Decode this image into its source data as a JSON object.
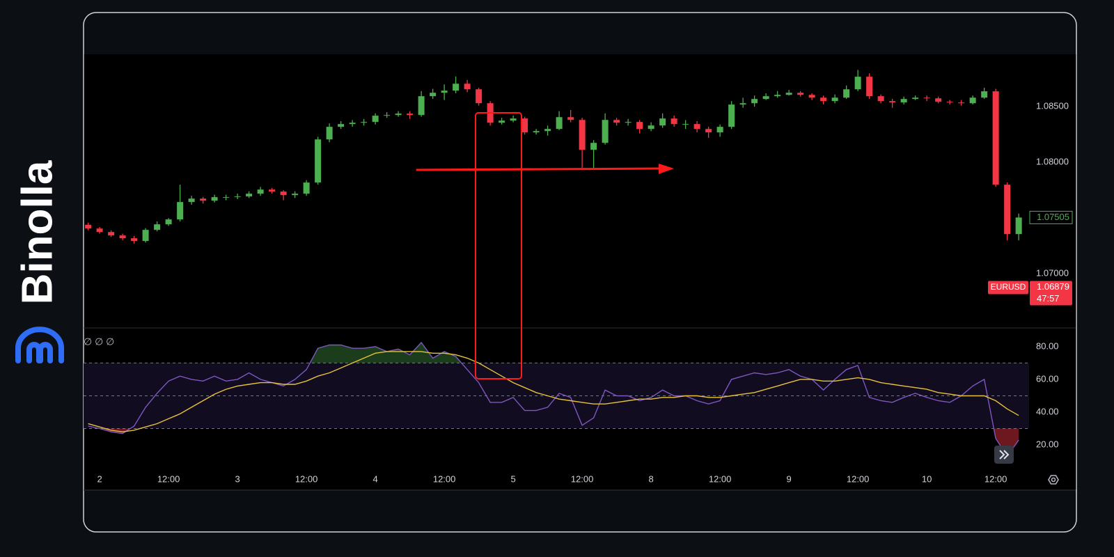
{
  "brand": "Binolla",
  "chart_data": {
    "type": "candlestick",
    "symbol": "EURUSD",
    "current_price": 1.06879,
    "countdown": "47:57",
    "up_color": "#4caf50",
    "down_color": "#f23645",
    "xlim": [
      -2.8,
      161.8
    ],
    "xticks": [
      {
        "value": 0,
        "label": "2"
      },
      {
        "value": 12,
        "label": "12:00"
      },
      {
        "value": 24,
        "label": "3"
      },
      {
        "value": 36,
        "label": "12:00"
      },
      {
        "value": 48,
        "label": "4"
      },
      {
        "value": 60,
        "label": "12:00"
      },
      {
        "value": 72,
        "label": "5"
      },
      {
        "value": 84,
        "label": "12:00"
      },
      {
        "value": 96,
        "label": "8"
      },
      {
        "value": 108,
        "label": "12:00"
      },
      {
        "value": 120,
        "label": "9"
      },
      {
        "value": 132,
        "label": "12:00"
      },
      {
        "value": 144,
        "label": "10"
      },
      {
        "value": 156,
        "label": "12:00"
      }
    ],
    "ylim": [
      1.0652,
      1.0897
    ],
    "yticks": [
      {
        "value": 1.085,
        "label": "1.08500"
      },
      {
        "value": 1.08,
        "label": "1.08000"
      },
      {
        "value": 1.07,
        "label": "1.07000"
      }
    ],
    "x": [
      -2,
      0,
      2,
      4,
      6,
      8,
      10,
      12,
      14,
      16,
      18,
      20,
      22,
      24,
      26,
      28,
      30,
      32,
      34,
      36,
      38,
      40,
      42,
      44,
      46,
      48,
      50,
      52,
      54,
      56,
      58,
      60,
      62,
      64,
      66,
      68,
      70,
      72,
      74,
      76,
      78,
      80,
      82,
      84,
      86,
      88,
      90,
      92,
      94,
      96,
      98,
      100,
      102,
      104,
      106,
      108,
      110,
      112,
      114,
      116,
      118,
      120,
      122,
      124,
      126,
      128,
      130,
      132,
      134,
      136,
      138,
      140,
      142,
      144,
      146,
      148,
      150,
      152,
      154,
      156,
      158,
      160
    ],
    "open": [
      1.0744,
      1.07406,
      1.07375,
      1.07344,
      1.07319,
      1.07294,
      1.07394,
      1.07444,
      1.07488,
      1.07644,
      1.07675,
      1.07656,
      1.07688,
      1.07688,
      1.07694,
      1.07719,
      1.07756,
      1.07738,
      1.07706,
      1.07719,
      1.07819,
      1.08206,
      1.08319,
      1.08344,
      1.08356,
      1.08363,
      1.08419,
      1.08425,
      1.08438,
      1.08425,
      1.08594,
      1.08625,
      1.08644,
      1.08706,
      1.08656,
      1.08531,
      1.08356,
      1.08375,
      1.08394,
      1.08269,
      1.08281,
      1.083,
      1.08406,
      1.08381,
      1.08113,
      1.08175,
      1.08381,
      1.08356,
      1.08363,
      1.083,
      1.08331,
      1.08394,
      1.08344,
      1.08344,
      1.083,
      1.08269,
      1.08319,
      1.08519,
      1.08531,
      1.08569,
      1.08594,
      1.08606,
      1.08625,
      1.08606,
      1.08581,
      1.0855,
      1.08581,
      1.08656,
      1.08769,
      1.08594,
      1.0855,
      1.08538,
      1.08569,
      1.08581,
      1.08575,
      1.08544,
      1.08538,
      1.08531,
      1.08581,
      1.08638,
      1.078,
      1.07356
    ],
    "high": [
      1.0746,
      1.0742,
      1.0739,
      1.0736,
      1.0734,
      1.0741,
      1.0747,
      1.075,
      1.078,
      1.077,
      1.0769,
      1.0771,
      1.0771,
      1.0772,
      1.0774,
      1.0778,
      1.0777,
      1.0775,
      1.0774,
      1.0784,
      1.0823,
      1.0835,
      1.0837,
      1.0838,
      1.0839,
      1.0844,
      1.0845,
      1.0846,
      1.0846,
      1.0864,
      1.0866,
      1.087,
      1.0877,
      1.0874,
      1.0867,
      1.0855,
      1.084,
      1.0842,
      1.0841,
      1.083,
      1.0833,
      1.0846,
      1.0847,
      1.084,
      1.082,
      1.0844,
      1.084,
      1.0839,
      1.0838,
      1.0836,
      1.0844,
      1.0842,
      1.0838,
      1.0837,
      1.0832,
      1.0834,
      1.0855,
      1.0858,
      1.086,
      1.0862,
      1.0864,
      1.0865,
      1.0864,
      1.0862,
      1.086,
      1.0861,
      1.0869,
      1.0883,
      1.088,
      1.0861,
      1.0857,
      1.0859,
      1.086,
      1.086,
      1.0859,
      1.0856,
      1.0856,
      1.086,
      1.0867,
      1.0866,
      1.0782,
      1.0754
    ],
    "low": [
      1.0739,
      1.0736,
      1.0733,
      1.073,
      1.0727,
      1.0728,
      1.0738,
      1.0743,
      1.0747,
      1.0762,
      1.0763,
      1.0764,
      1.0766,
      1.0767,
      1.0768,
      1.077,
      1.0772,
      1.0766,
      1.0768,
      1.077,
      1.078,
      1.0818,
      1.083,
      1.0832,
      1.0833,
      1.0834,
      1.084,
      1.0841,
      1.0839,
      1.0841,
      1.0857,
      1.0856,
      1.0862,
      1.0863,
      1.0851,
      1.0833,
      1.0834,
      1.0836,
      1.0825,
      1.0825,
      1.0824,
      1.0829,
      1.0836,
      1.0795,
      1.0795,
      1.0816,
      1.0833,
      1.0833,
      1.0826,
      1.0828,
      1.0831,
      1.0832,
      1.083,
      1.0827,
      1.0822,
      1.0823,
      1.083,
      1.0849,
      1.085,
      1.0856,
      1.0858,
      1.086,
      1.0859,
      1.0856,
      1.0852,
      1.0853,
      1.0857,
      1.0864,
      1.0857,
      1.0853,
      1.0849,
      1.0852,
      1.0856,
      1.0855,
      1.0853,
      1.0852,
      1.0851,
      1.0852,
      1.0857,
      1.0778,
      1.073,
      1.073
    ],
    "close": [
      1.07406,
      1.07375,
      1.07344,
      1.07319,
      1.07294,
      1.07394,
      1.07444,
      1.07488,
      1.07644,
      1.07675,
      1.07656,
      1.07688,
      1.07688,
      1.07694,
      1.07719,
      1.07756,
      1.07738,
      1.07706,
      1.07719,
      1.07819,
      1.08206,
      1.08319,
      1.08344,
      1.08356,
      1.08363,
      1.08419,
      1.08425,
      1.08438,
      1.08425,
      1.08594,
      1.08625,
      1.08644,
      1.08706,
      1.08656,
      1.08531,
      1.08356,
      1.08375,
      1.08394,
      1.08269,
      1.08281,
      1.083,
      1.08406,
      1.08381,
      1.08113,
      1.08175,
      1.08381,
      1.08356,
      1.08363,
      1.083,
      1.08331,
      1.08394,
      1.08344,
      1.08344,
      1.083,
      1.08269,
      1.08319,
      1.08519,
      1.08531,
      1.08569,
      1.08594,
      1.08606,
      1.08625,
      1.08606,
      1.08581,
      1.0855,
      1.08581,
      1.08656,
      1.08769,
      1.08594,
      1.0855,
      1.08538,
      1.08569,
      1.08581,
      1.08575,
      1.08544,
      1.08538,
      1.08531,
      1.08581,
      1.08638,
      1.078,
      1.07356,
      1.07505
    ],
    "rsi": {
      "indicator_label": "∅ ∅ ∅",
      "color": "#7e57c2",
      "ma_color": "#e8c33a",
      "ylim": [
        6,
        91
      ],
      "yticks": [
        {
          "value": 80,
          "label": "80.00"
        },
        {
          "value": 60,
          "label": "60.00"
        },
        {
          "value": 40,
          "label": "40.00"
        },
        {
          "value": 20,
          "label": "20.00"
        }
      ],
      "levels": [
        70,
        50,
        30
      ],
      "values": [
        31.5,
        30,
        28,
        27,
        31.5,
        43,
        51.5,
        59,
        62,
        60,
        59,
        62,
        59,
        60,
        64,
        60,
        58,
        56,
        60,
        66,
        79,
        81,
        81,
        79,
        79,
        80,
        77,
        78.5,
        75,
        82.5,
        73,
        77,
        74,
        66,
        58,
        46,
        46,
        49,
        41,
        41,
        43,
        51.5,
        49,
        32,
        36.5,
        53.5,
        50,
        50,
        47,
        49,
        53.5,
        50,
        50,
        47,
        45,
        47,
        60,
        62,
        64,
        63,
        64,
        66,
        62,
        60,
        53.5,
        60,
        66,
        68.5,
        49,
        47,
        46,
        49,
        51.5,
        49,
        47,
        46,
        50,
        56,
        60,
        24,
        13,
        23
      ],
      "ma": [
        33,
        31,
        29,
        28,
        29,
        31,
        33,
        36,
        39,
        43,
        47,
        51,
        54,
        56,
        57,
        58,
        58,
        57,
        57,
        59,
        62,
        64,
        67,
        70,
        73,
        76,
        77,
        77,
        77,
        77,
        76,
        76,
        75,
        73,
        70,
        66,
        62,
        58,
        55,
        52,
        50,
        48,
        47,
        46,
        45,
        45,
        46,
        47,
        48,
        48,
        49,
        49,
        50,
        50,
        49,
        49,
        50,
        51,
        52,
        54,
        56,
        58,
        60,
        60,
        59,
        59,
        60,
        61,
        60,
        58,
        57,
        56,
        55,
        54,
        52,
        51,
        50,
        50,
        50,
        47,
        42,
        38
      ]
    }
  }
}
